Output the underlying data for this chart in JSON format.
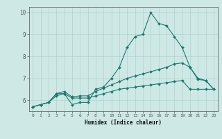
{
  "line1_x": [
    0,
    1,
    2,
    3,
    4,
    5,
    6,
    7,
    8,
    9,
    10,
    11,
    12,
    13,
    14,
    15,
    16,
    17,
    18,
    19,
    20,
    21,
    22,
    23
  ],
  "line1_y": [
    5.7,
    5.8,
    5.9,
    6.3,
    6.3,
    5.8,
    5.9,
    5.9,
    6.5,
    6.6,
    7.0,
    7.5,
    8.4,
    8.9,
    9.0,
    10.0,
    9.5,
    9.4,
    8.9,
    8.4,
    7.5,
    6.95,
    6.9,
    6.5
  ],
  "line2_x": [
    0,
    1,
    2,
    3,
    4,
    5,
    6,
    7,
    8,
    9,
    10,
    11,
    12,
    13,
    14,
    15,
    16,
    17,
    18,
    19,
    20,
    21,
    22,
    23
  ],
  "line2_y": [
    5.7,
    5.8,
    5.9,
    6.3,
    6.4,
    6.15,
    6.2,
    6.2,
    6.4,
    6.55,
    6.7,
    6.85,
    7.0,
    7.1,
    7.2,
    7.3,
    7.4,
    7.5,
    7.65,
    7.7,
    7.5,
    7.0,
    6.9,
    6.5
  ],
  "line3_x": [
    0,
    1,
    2,
    3,
    4,
    5,
    6,
    7,
    8,
    9,
    10,
    11,
    12,
    13,
    14,
    15,
    16,
    17,
    18,
    19,
    20,
    21,
    22,
    23
  ],
  "line3_y": [
    5.7,
    5.8,
    5.9,
    6.2,
    6.3,
    6.1,
    6.1,
    6.1,
    6.2,
    6.3,
    6.4,
    6.5,
    6.55,
    6.6,
    6.65,
    6.7,
    6.75,
    6.8,
    6.85,
    6.9,
    6.5,
    6.5,
    6.5,
    6.5
  ],
  "bg_color": "#cde8e5",
  "grid_color": "#aaccca",
  "line_color": "#1a7a6e",
  "axis_color": "#555555",
  "xlabel": "Humidex (Indice chaleur)",
  "xlim": [
    -0.5,
    23.5
  ],
  "ylim": [
    5.5,
    10.25
  ],
  "xticks": [
    0,
    1,
    2,
    3,
    4,
    5,
    6,
    7,
    8,
    9,
    10,
    11,
    12,
    13,
    14,
    15,
    16,
    17,
    18,
    19,
    20,
    21,
    22,
    23
  ],
  "yticks": [
    6,
    7,
    8,
    9,
    10
  ],
  "marker": "D",
  "markersize": 2.0,
  "linewidth": 0.8
}
